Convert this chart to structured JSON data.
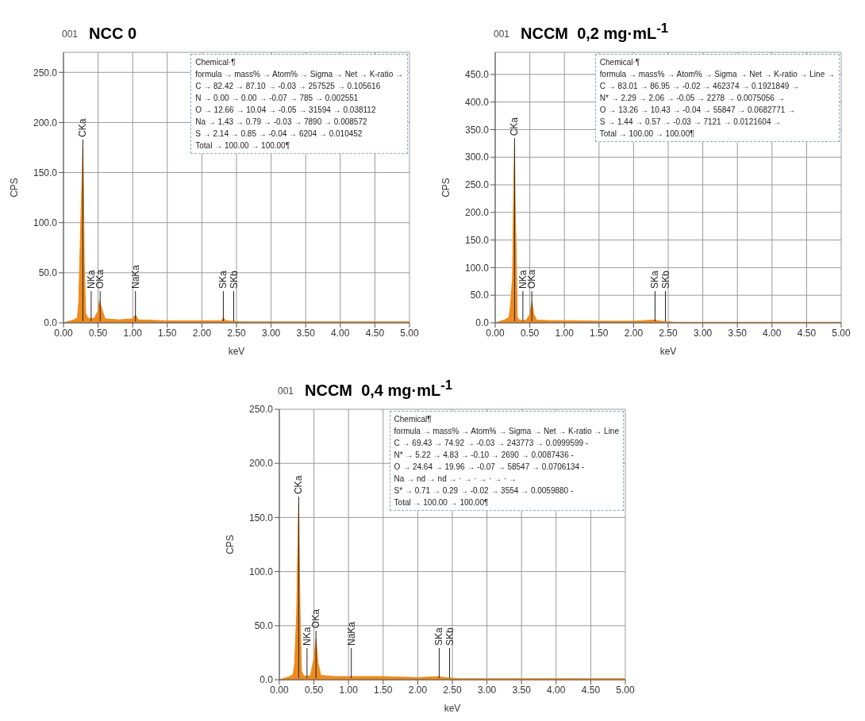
{
  "chart_data": [
    {
      "type": "area",
      "title": "NCC 0",
      "xlabel": "keV",
      "ylabel": "CPS",
      "grid": true,
      "xlim": [
        0,
        5
      ],
      "ylim": [
        0,
        270
      ],
      "xticks": [
        {
          "value": 0,
          "label": "0.00"
        },
        {
          "value": 0.5,
          "label": "0.50"
        },
        {
          "value": 1,
          "label": "1.00"
        },
        {
          "value": 1.5,
          "label": "1.50"
        },
        {
          "value": 2,
          "label": "2.00"
        },
        {
          "value": 2.5,
          "label": "2.50"
        },
        {
          "value": 3,
          "label": "3.00"
        },
        {
          "value": 3.5,
          "label": "3.50"
        },
        {
          "value": 4,
          "label": "4.00"
        },
        {
          "value": 4.5,
          "label": "4.50"
        },
        {
          "value": 5,
          "label": "5.00"
        }
      ],
      "yticks": [
        {
          "value": 0,
          "label": "0.0"
        },
        {
          "value": 50,
          "label": "50.0"
        },
        {
          "value": 100,
          "label": "100.0"
        },
        {
          "value": 150,
          "label": "150.0"
        },
        {
          "value": 200,
          "label": "200.0"
        },
        {
          "value": 250,
          "label": "250.0"
        }
      ],
      "series": [
        {
          "color": "#ee8a1f",
          "x": [
            0,
            0.05,
            0.1,
            0.15,
            0.2,
            0.22,
            0.25,
            0.27,
            0.28,
            0.29,
            0.3,
            0.32,
            0.35,
            0.4,
            0.45,
            0.5,
            0.52,
            0.55,
            0.6,
            0.8,
            1.0,
            1.04,
            1.08,
            1.5,
            2.0,
            2.28,
            2.31,
            2.35,
            2.6,
            3.0,
            5.0
          ],
          "values": [
            0,
            1,
            2,
            3,
            5,
            20,
            100,
            150,
            175,
            130,
            60,
            10,
            5,
            4,
            5,
            12,
            22,
            15,
            4,
            3,
            4,
            8,
            3,
            2,
            2,
            2,
            5,
            2,
            1,
            1,
            1
          ]
        }
      ],
      "annotations": [
        "001",
        "Chemical·¶",
        "formula → mass% → Atom% → Sigma → Net → K-ratio →",
        "C → 82.42 → 87.10 → -0.03 → 257525 → 0.105616",
        "N → 0.00 → 0.00 → -0.07 → 785 → 0.002551",
        "O → 12.66 → 10.04 → -0.05 → 31594 → 0.038112",
        "Na → 1.43 → 0.79 → -0.03 → 7890 → 0.008572",
        "S → 2.14 → 0.85 → -0.04 → 6204 → 0.010452",
        "Total → 100.00 → 100.00¶"
      ],
      "ref_lines": [
        {
          "axis": "x",
          "value": 0.28,
          "label": "CKa"
        },
        {
          "axis": "x",
          "value": 0.4,
          "label": "NKa"
        },
        {
          "axis": "x",
          "value": 0.53,
          "label": "OKa"
        },
        {
          "axis": "x",
          "value": 1.04,
          "label": "NaKa"
        },
        {
          "axis": "x",
          "value": 2.31,
          "label": "SKa"
        },
        {
          "axis": "x",
          "value": 2.46,
          "label": "SKb"
        }
      ]
    },
    {
      "type": "area",
      "title": "NCCM  0,2 mg·mL$^{-1}$",
      "xlabel": "keV",
      "ylabel": "CPS",
      "grid": true,
      "xlim": [
        0,
        5
      ],
      "ylim": [
        0,
        490
      ],
      "xticks": [
        {
          "value": 0,
          "label": "0.00"
        },
        {
          "value": 0.5,
          "label": "0.50"
        },
        {
          "value": 1,
          "label": "1.00"
        },
        {
          "value": 1.5,
          "label": "1.50"
        },
        {
          "value": 2,
          "label": "2.00"
        },
        {
          "value": 2.5,
          "label": "2.50"
        },
        {
          "value": 3,
          "label": "3.00"
        },
        {
          "value": 3.5,
          "label": "3.50"
        },
        {
          "value": 4,
          "label": "4.00"
        },
        {
          "value": 4.5,
          "label": "4.50"
        },
        {
          "value": 5,
          "label": "5.00"
        }
      ],
      "yticks": [
        {
          "value": 0,
          "label": "0.0"
        },
        {
          "value": 50,
          "label": "50.0"
        },
        {
          "value": 100,
          "label": "100.0"
        },
        {
          "value": 150,
          "label": "150.0"
        },
        {
          "value": 200,
          "label": "200.0"
        },
        {
          "value": 250,
          "label": "250.0"
        },
        {
          "value": 300,
          "label": "300.0"
        },
        {
          "value": 350,
          "label": "350.0"
        },
        {
          "value": 400,
          "label": "400.0"
        },
        {
          "value": 450,
          "label": "450.0"
        }
      ],
      "series": [
        {
          "color": "#ee8a1f",
          "x": [
            0,
            0.05,
            0.1,
            0.15,
            0.2,
            0.22,
            0.25,
            0.27,
            0.28,
            0.29,
            0.3,
            0.32,
            0.35,
            0.4,
            0.45,
            0.5,
            0.53,
            0.56,
            0.6,
            0.8,
            1.0,
            1.5,
            2.0,
            2.3,
            2.4,
            2.6,
            3.0,
            5.0
          ],
          "values": [
            0,
            2,
            4,
            6,
            10,
            30,
            80,
            260,
            320,
            200,
            150,
            10,
            5,
            4,
            5,
            15,
            38,
            15,
            5,
            4,
            4,
            3,
            3,
            5,
            3,
            1,
            1,
            1
          ]
        }
      ],
      "annotations": [
        "001",
        "Chemical·¶",
        "formula → mass% → Atom% → Sigma → Net → K-ratio → Line →",
        "C → 83.01 → 86.95 → -0.02 → 462374 → 0.1921849 →",
        "N* → 2.29 → 2.06 → -0.05 → 2278 → 0.0075056 →",
        "O → 13.26 → 10.43 → -0.04 → 55847 → 0.0682771 →",
        "S → 1.44 → 0.57 → -0.03 → 7121 → 0.0121604 →",
        "Total → 100.00 → 100.00¶"
      ],
      "ref_lines": [
        {
          "axis": "x",
          "value": 0.28,
          "label": "CKa"
        },
        {
          "axis": "x",
          "value": 0.4,
          "label": "NKa"
        },
        {
          "axis": "x",
          "value": 0.53,
          "label": "OKa"
        },
        {
          "axis": "x",
          "value": 2.31,
          "label": "SKa"
        },
        {
          "axis": "x",
          "value": 2.46,
          "label": "SKb"
        }
      ]
    },
    {
      "type": "area",
      "title": "NCCM  0,4 mg·mL$^{-1}$",
      "xlabel": "keV",
      "ylabel": "CPS",
      "grid": true,
      "xlim": [
        0,
        5
      ],
      "ylim": [
        0,
        250
      ],
      "xticks": [
        {
          "value": 0,
          "label": "0.00"
        },
        {
          "value": 0.5,
          "label": "0.50"
        },
        {
          "value": 1,
          "label": "1.00"
        },
        {
          "value": 1.5,
          "label": "1.50"
        },
        {
          "value": 2,
          "label": "2.00"
        },
        {
          "value": 2.5,
          "label": "2.50"
        },
        {
          "value": 3,
          "label": "3.00"
        },
        {
          "value": 3.5,
          "label": "3.50"
        },
        {
          "value": 4,
          "label": "4.00"
        },
        {
          "value": 4.5,
          "label": "4.50"
        },
        {
          "value": 5,
          "label": "5.00"
        }
      ],
      "yticks": [
        {
          "value": 0,
          "label": "0.0"
        },
        {
          "value": 50,
          "label": "50.0"
        },
        {
          "value": 100,
          "label": "100.0"
        },
        {
          "value": 150,
          "label": "150.0"
        },
        {
          "value": 200,
          "label": "200.0"
        },
        {
          "value": 250,
          "label": "250.0"
        }
      ],
      "series": [
        {
          "color": "#ee8a1f",
          "x": [
            0,
            0.05,
            0.1,
            0.15,
            0.2,
            0.22,
            0.25,
            0.27,
            0.28,
            0.29,
            0.3,
            0.32,
            0.35,
            0.4,
            0.45,
            0.5,
            0.53,
            0.56,
            0.6,
            0.8,
            1.0,
            1.5,
            2.0,
            2.3,
            2.4,
            2.6,
            3.0,
            5.0
          ],
          "values": [
            0,
            1,
            2,
            3,
            5,
            15,
            60,
            135,
            162,
            110,
            60,
            8,
            4,
            3,
            4,
            20,
            38,
            15,
            4,
            3,
            3,
            3,
            2,
            3,
            2,
            1,
            1,
            1
          ]
        }
      ],
      "annotations": [
        "001",
        "Chemical¶",
        "formula → mass% → Atom% → Sigma → Net → K-ratio → Line",
        "C → 69.43 → 74.92 → -0.03 → 243773 → 0.0999599 -",
        "N* → 5.22 → 4.83 → -0.10 → 2690 → 0.0087436 -",
        "O → 24.64 → 19.96 → -0.07 → 58547 → 0.0706134 -",
        "Na → nd → nd → · → · → · → · →",
        "S* → 0.71 → 0.29 → -0.02 → 3554 → 0.0059880 -",
        "Total → 100.00 → 100.00¶"
      ],
      "ref_lines": [
        {
          "axis": "x",
          "value": 0.28,
          "label": "CKa"
        },
        {
          "axis": "x",
          "value": 0.4,
          "label": "NKa"
        },
        {
          "axis": "x",
          "value": 0.53,
          "label": "OKa"
        },
        {
          "axis": "x",
          "value": 1.04,
          "label": "NaKa"
        },
        {
          "axis": "x",
          "value": 2.31,
          "label": "SKa"
        },
        {
          "axis": "x",
          "value": 2.46,
          "label": "SKb"
        }
      ]
    }
  ]
}
